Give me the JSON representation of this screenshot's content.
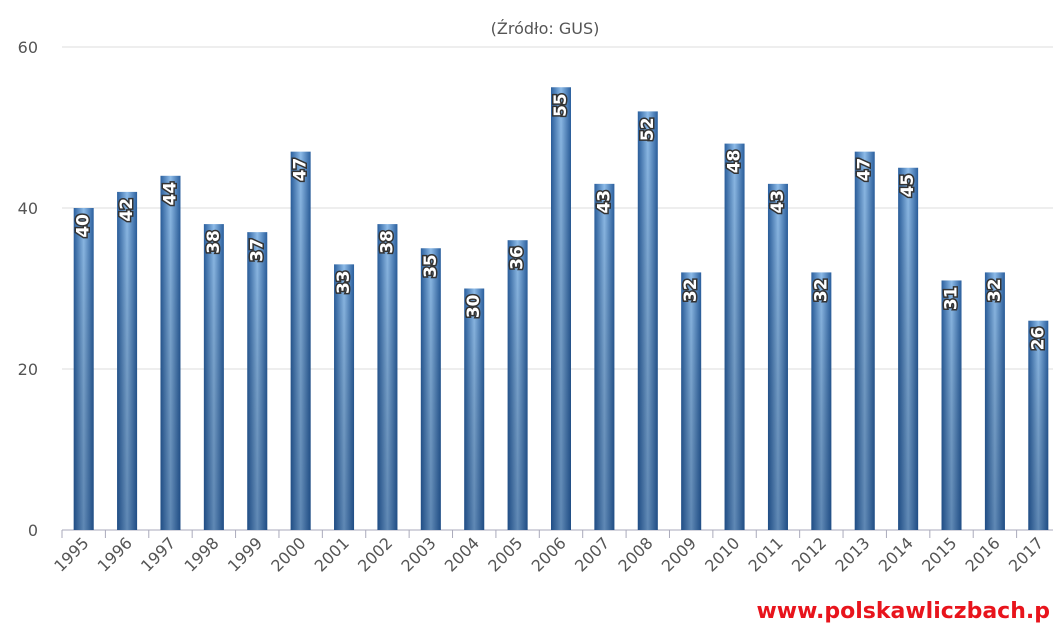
{
  "chart_data": {
    "type": "bar",
    "subtitle": "(Źródło: GUS)",
    "watermark": "www.polskawliczbach.p",
    "categories": [
      "1995",
      "1996",
      "1997",
      "1998",
      "1999",
      "2000",
      "2001",
      "2002",
      "2003",
      "2004",
      "2005",
      "2006",
      "2007",
      "2008",
      "2009",
      "2010",
      "2011",
      "2012",
      "2013",
      "2014",
      "2015",
      "2016",
      "2017"
    ],
    "values": [
      40,
      42,
      44,
      38,
      37,
      47,
      33,
      38,
      35,
      30,
      36,
      55,
      43,
      52,
      32,
      48,
      43,
      32,
      47,
      45,
      31,
      32,
      26
    ],
    "color": "#3f7bbf",
    "ylim": [
      0,
      60
    ],
    "yticks": [
      0,
      20,
      40,
      60
    ],
    "grid": true
  }
}
